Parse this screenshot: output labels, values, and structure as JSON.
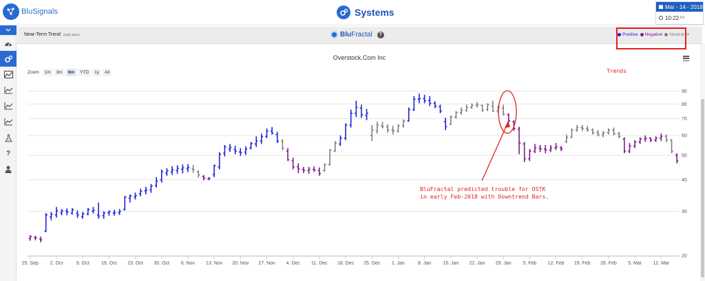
{
  "app": {
    "logo_text": "BluSignals",
    "page_title": "Systems"
  },
  "datebox": {
    "date": "Mar - 14 - 2018",
    "time": "10:22",
    "time_suffix": "AM"
  },
  "sidebar": {
    "items": [
      {
        "icon": "dashboard-icon"
      },
      {
        "icon": "gears-icon",
        "active": true
      },
      {
        "icon": "area-chart-icon"
      },
      {
        "icon": "line-chart-icon"
      },
      {
        "icon": "line-chart-icon"
      },
      {
        "icon": "line-chart-icon"
      },
      {
        "icon": "flask-icon"
      },
      {
        "icon": "question-icon"
      },
      {
        "icon": "user-icon"
      }
    ]
  },
  "panel": {
    "title": "Near-Term Trend",
    "subtitle": "(Daily Bars)",
    "brand_prefix": "Blu",
    "brand_suffix": "Fractal",
    "legend": [
      {
        "label": "Positive",
        "color": "#1f22d6"
      },
      {
        "label": "Negative",
        "color": "#7d1a8c"
      },
      {
        "label": "Neutral",
        "color": "#7f7f7f"
      }
    ]
  },
  "chart": {
    "title": "Overstock.Com Inc",
    "zoom_label": "Zoom",
    "zoom_options": [
      "1m",
      "3m",
      "6m",
      "YTD",
      "1y",
      "All"
    ],
    "zoom_selected": "6m"
  },
  "annotations": {
    "trends_label": "Trends",
    "note": "BluFractal predicted trouble for OSTK\nin early Feb-2018 with Downtrend Bars."
  },
  "chart_data": {
    "type": "ohlc",
    "title": "Overstock.Com Inc",
    "y_axis": {
      "scale": "log",
      "range": [
        20,
        95
      ],
      "ticks": [
        20,
        30,
        40,
        50,
        60,
        70,
        80,
        90
      ],
      "position": "right"
    },
    "x_ticks": [
      "25. Sep",
      "2. Oct",
      "9. Oct",
      "16. Oct",
      "23. Oct",
      "30. Oct",
      "6. Nov",
      "13. Nov",
      "20. Nov",
      "27. Nov",
      "4. Dec",
      "11. Dec",
      "18. Dec",
      "25. Dec",
      "1. Jan",
      "8. Jan",
      "15. Jan",
      "22. Jan",
      "29. Jan",
      "5. Feb",
      "12. Feb",
      "19. Feb",
      "26. Feb",
      "5. Mar",
      "12. Mar"
    ],
    "colors": {
      "P": "#1f22d6",
      "N": "#7d1a8c",
      "U": "#7f7f7f"
    },
    "series": [
      {
        "name": "Positive",
        "code": "P"
      },
      {
        "name": "Negative",
        "code": "N"
      },
      {
        "name": "Neutral",
        "code": "U"
      }
    ],
    "bars": [
      [
        23.4,
        24.1,
        22.9,
        23.8,
        "N"
      ],
      [
        23.6,
        24.0,
        23.0,
        23.5,
        "N"
      ],
      [
        23.3,
        23.8,
        22.6,
        23.1,
        "N"
      ],
      [
        25.0,
        29.5,
        24.8,
        29.0,
        "P"
      ],
      [
        28.5,
        29.8,
        27.6,
        29.2,
        "P"
      ],
      [
        29.0,
        31.2,
        28.3,
        30.1,
        "P"
      ],
      [
        29.6,
        30.6,
        28.9,
        30.1,
        "P"
      ],
      [
        30.0,
        30.8,
        28.9,
        29.8,
        "P"
      ],
      [
        29.5,
        30.9,
        29.1,
        30.4,
        "P"
      ],
      [
        29.4,
        30.2,
        28.2,
        29.0,
        "P"
      ],
      [
        28.6,
        29.8,
        28.0,
        29.3,
        "P"
      ],
      [
        29.2,
        30.9,
        28.9,
        30.5,
        "P"
      ],
      [
        30.0,
        31.2,
        29.4,
        30.3,
        "P"
      ],
      [
        29.0,
        32.5,
        28.0,
        28.7,
        "P"
      ],
      [
        28.8,
        30.0,
        28.0,
        29.5,
        "P"
      ],
      [
        29.6,
        30.2,
        28.8,
        29.9,
        "P"
      ],
      [
        29.5,
        30.4,
        28.8,
        29.6,
        "P"
      ],
      [
        29.6,
        30.6,
        29.0,
        30.0,
        "P"
      ],
      [
        30.5,
        34.5,
        30.2,
        34.1,
        "P"
      ],
      [
        33.8,
        35.0,
        32.5,
        34.5,
        "P"
      ],
      [
        34.2,
        35.6,
        33.4,
        34.6,
        "P"
      ],
      [
        35.2,
        36.9,
        34.4,
        36.0,
        "P"
      ],
      [
        36.1,
        37.5,
        35.0,
        36.4,
        "P"
      ],
      [
        36.5,
        38.5,
        35.5,
        37.8,
        "P"
      ],
      [
        38.0,
        41.0,
        37.2,
        39.5,
        "P"
      ],
      [
        40.0,
        44.0,
        39.0,
        43.0,
        "P"
      ],
      [
        42.5,
        44.5,
        41.5,
        43.4,
        "P"
      ],
      [
        43.0,
        45.3,
        41.8,
        43.8,
        "P"
      ],
      [
        43.5,
        45.7,
        42.3,
        44.4,
        "P"
      ],
      [
        44.0,
        46.0,
        42.4,
        44.6,
        "P"
      ],
      [
        44.3,
        46.2,
        42.9,
        44.8,
        "P"
      ],
      [
        44.2,
        45.8,
        42.6,
        43.9,
        "U"
      ],
      [
        43.0,
        43.6,
        40.8,
        41.8,
        "U"
      ],
      [
        41.2,
        41.8,
        39.8,
        40.6,
        "N"
      ],
      [
        40.4,
        41.0,
        39.8,
        40.5,
        "N"
      ],
      [
        42.0,
        46.0,
        41.0,
        45.5,
        "P"
      ],
      [
        45.0,
        51.5,
        44.0,
        50.5,
        "P"
      ],
      [
        51.0,
        55.0,
        49.5,
        54.0,
        "P"
      ],
      [
        53.0,
        55.5,
        51.6,
        53.8,
        "P"
      ],
      [
        52.8,
        54.6,
        50.5,
        52.0,
        "P"
      ],
      [
        51.6,
        53.5,
        49.8,
        51.2,
        "P"
      ],
      [
        51.5,
        54.3,
        50.2,
        53.0,
        "P"
      ],
      [
        53.5,
        56.5,
        52.8,
        55.8,
        "P"
      ],
      [
        55.5,
        59.5,
        54.0,
        57.0,
        "P"
      ],
      [
        57.0,
        61.0,
        55.5,
        59.3,
        "P"
      ],
      [
        59.5,
        64.0,
        58.5,
        62.4,
        "P"
      ],
      [
        62.5,
        64.8,
        60.5,
        61.2,
        "P"
      ],
      [
        60.5,
        62.0,
        56.0,
        57.0,
        "P"
      ],
      [
        57.0,
        58.0,
        52.5,
        53.3,
        "U"
      ],
      [
        52.0,
        53.5,
        47.5,
        48.0,
        "N"
      ],
      [
        47.5,
        49.0,
        44.0,
        45.0,
        "N"
      ],
      [
        45.0,
        46.5,
        42.5,
        44.1,
        "N"
      ],
      [
        44.0,
        45.0,
        42.5,
        43.6,
        "N"
      ],
      [
        43.5,
        45.0,
        42.2,
        44.0,
        "N"
      ],
      [
        44.0,
        45.2,
        43.0,
        43.7,
        "N"
      ],
      [
        43.5,
        44.8,
        41.5,
        42.4,
        "N"
      ],
      [
        43.5,
        46.5,
        43.0,
        46.0,
        "U"
      ],
      [
        46.0,
        53.0,
        45.5,
        52.5,
        "U"
      ],
      [
        52.0,
        57.0,
        51.5,
        56.0,
        "U"
      ],
      [
        55.5,
        60.0,
        54.5,
        58.5,
        "P"
      ],
      [
        58.5,
        67.0,
        57.5,
        66.0,
        "P"
      ],
      [
        66.0,
        76.0,
        64.5,
        73.5,
        "P"
      ],
      [
        73.5,
        82.5,
        71.0,
        77.5,
        "P"
      ],
      [
        77.0,
        79.5,
        70.5,
        72.5,
        "P"
      ],
      [
        72.0,
        76.5,
        69.0,
        73.5,
        "P"
      ],
      [
        60.0,
        66.0,
        57.0,
        63.0,
        "U"
      ],
      [
        62.5,
        68.0,
        61.0,
        66.0,
        "U"
      ],
      [
        65.5,
        68.0,
        64.0,
        65.0,
        "U"
      ],
      [
        65.0,
        66.5,
        61.5,
        63.0,
        "U"
      ],
      [
        63.0,
        65.5,
        60.5,
        62.5,
        "U"
      ],
      [
        62.5,
        66.5,
        61.5,
        65.5,
        "U"
      ],
      [
        65.5,
        69.5,
        64.5,
        68.5,
        "U"
      ],
      [
        68.5,
        77.5,
        68.0,
        76.0,
        "P"
      ],
      [
        76.0,
        86.0,
        75.0,
        83.5,
        "P"
      ],
      [
        83.5,
        88.0,
        80.5,
        84.0,
        "P"
      ],
      [
        84.0,
        87.0,
        80.5,
        82.5,
        "P"
      ],
      [
        82.5,
        86.0,
        78.5,
        80.5,
        "P"
      ],
      [
        80.5,
        82.0,
        77.0,
        78.5,
        "P"
      ],
      [
        78.0,
        79.5,
        73.5,
        75.0,
        "P"
      ],
      [
        68.0,
        70.5,
        63.0,
        65.0,
        "P"
      ],
      [
        66.5,
        72.0,
        66.0,
        71.0,
        "U"
      ],
      [
        71.0,
        75.0,
        70.0,
        74.0,
        "U"
      ],
      [
        74.0,
        77.5,
        72.5,
        75.5,
        "U"
      ],
      [
        75.5,
        79.5,
        74.5,
        77.5,
        "U"
      ],
      [
        77.5,
        80.5,
        76.5,
        79.0,
        "U"
      ],
      [
        79.0,
        81.5,
        77.5,
        79.5,
        "U"
      ],
      [
        79.0,
        79.5,
        74.5,
        75.5,
        "U"
      ],
      [
        76.0,
        80.5,
        75.0,
        79.5,
        "U"
      ],
      [
        78.5,
        82.5,
        74.5,
        75.0,
        "U"
      ],
      [
        75.0,
        79.0,
        73.5,
        77.5,
        "U"
      ],
      [
        77.0,
        79.5,
        72.0,
        73.0,
        "U"
      ],
      [
        72.5,
        73.5,
        67.5,
        68.5,
        "N"
      ],
      [
        68.0,
        69.0,
        62.5,
        64.0,
        "N"
      ],
      [
        63.5,
        65.0,
        50.5,
        56.0,
        "N"
      ],
      [
        55.5,
        56.5,
        47.0,
        48.5,
        "N"
      ],
      [
        48.5,
        53.0,
        47.5,
        52.0,
        "N"
      ],
      [
        52.0,
        55.5,
        51.0,
        53.5,
        "N"
      ],
      [
        53.5,
        55.0,
        51.5,
        53.0,
        "N"
      ],
      [
        53.0,
        55.0,
        51.0,
        52.5,
        "N"
      ],
      [
        52.5,
        55.0,
        51.5,
        53.5,
        "N"
      ],
      [
        53.5,
        56.0,
        52.5,
        54.0,
        "N"
      ],
      [
        53.5,
        54.5,
        52.0,
        53.0,
        "N"
      ],
      [
        56.5,
        60.5,
        56.0,
        59.0,
        "U"
      ],
      [
        59.0,
        64.0,
        58.5,
        63.0,
        "U"
      ],
      [
        63.0,
        66.0,
        62.0,
        64.5,
        "U"
      ],
      [
        64.5,
        66.0,
        62.5,
        64.0,
        "U"
      ],
      [
        64.0,
        65.5,
        62.0,
        63.0,
        "U"
      ],
      [
        63.0,
        64.0,
        60.5,
        61.5,
        "U"
      ],
      [
        61.5,
        63.0,
        59.5,
        60.5,
        "U"
      ],
      [
        60.5,
        62.5,
        59.0,
        61.5,
        "U"
      ],
      [
        61.5,
        64.0,
        60.5,
        63.0,
        "U"
      ],
      [
        63.0,
        64.5,
        60.0,
        61.0,
        "U"
      ],
      [
        61.0,
        62.0,
        58.5,
        59.5,
        "U"
      ],
      [
        58.0,
        59.0,
        51.0,
        52.0,
        "N"
      ],
      [
        52.0,
        56.0,
        51.0,
        54.5,
        "N"
      ],
      [
        54.5,
        57.5,
        53.5,
        56.5,
        "N"
      ],
      [
        56.5,
        59.0,
        55.5,
        58.0,
        "N"
      ],
      [
        58.0,
        60.0,
        56.5,
        58.5,
        "N"
      ],
      [
        58.5,
        59.0,
        56.5,
        57.5,
        "N"
      ],
      [
        57.5,
        59.5,
        56.5,
        58.5,
        "N"
      ],
      [
        58.5,
        61.0,
        57.0,
        59.5,
        "N"
      ],
      [
        59.5,
        60.5,
        56.5,
        57.5,
        "U"
      ],
      [
        57.5,
        58.0,
        51.0,
        52.0,
        "U"
      ],
      [
        50.0,
        51.0,
        46.5,
        47.5,
        "N"
      ]
    ]
  }
}
